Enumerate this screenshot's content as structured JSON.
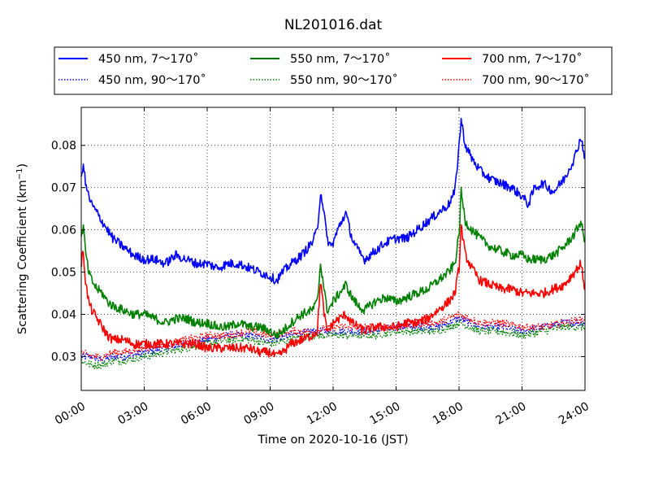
{
  "chart_data": {
    "type": "line",
    "title": "NL201016.dat",
    "xlabel": "Time on 2020-10-16 (JST)",
    "ylabel_main": "Scattering Coefficient (km",
    "ylabel_sup": "−1",
    "ylabel_close": ")",
    "xlim": [
      "00:00",
      "24:00"
    ],
    "ylim": [
      0.022,
      0.089
    ],
    "grid": true,
    "legend_position": "top, above plot",
    "x_ticks": [
      {
        "hour": 0,
        "label": "00:00"
      },
      {
        "hour": 3,
        "label": "03:00"
      },
      {
        "hour": 6,
        "label": "06:00"
      },
      {
        "hour": 9,
        "label": "09:00"
      },
      {
        "hour": 12,
        "label": "12:00"
      },
      {
        "hour": 15,
        "label": "15:00"
      },
      {
        "hour": 18,
        "label": "18:00"
      },
      {
        "hour": 21,
        "label": "21:00"
      },
      {
        "hour": 24,
        "label": "24:00"
      }
    ],
    "y_ticks": [
      {
        "value": 0.03,
        "label": "0.03"
      },
      {
        "value": 0.04,
        "label": "0.04"
      },
      {
        "value": 0.05,
        "label": "0.05"
      },
      {
        "value": 0.06,
        "label": "0.06"
      },
      {
        "value": 0.07,
        "label": "0.07"
      },
      {
        "value": 0.08,
        "label": "0.08"
      }
    ],
    "series": [
      {
        "name": "450 nm, 7～170˚",
        "color": "#0000ff",
        "style": "solid",
        "x": [
          0,
          0.1,
          0.2,
          0.35,
          0.5,
          0.75,
          1,
          1.25,
          1.5,
          2,
          2.5,
          3,
          3.5,
          4,
          4.5,
          5,
          5.5,
          6,
          6.5,
          7,
          7.5,
          8,
          8.5,
          9,
          9.3,
          9.6,
          10,
          10.5,
          11,
          11.25,
          11.4,
          11.55,
          11.7,
          11.9,
          12,
          12.3,
          12.6,
          12.9,
          13.2,
          13.5,
          14,
          14.5,
          15,
          15.5,
          16,
          16.5,
          17,
          17.5,
          17.8,
          18,
          18.1,
          18.3,
          18.6,
          19,
          19.5,
          20,
          20.5,
          21,
          21.3,
          21.6,
          22,
          22.5,
          23,
          23.5,
          23.8,
          24
        ],
        "y": [
          0.072,
          0.076,
          0.071,
          0.068,
          0.066,
          0.064,
          0.062,
          0.06,
          0.058,
          0.056,
          0.054,
          0.053,
          0.053,
          0.052,
          0.054,
          0.053,
          0.052,
          0.052,
          0.051,
          0.052,
          0.052,
          0.051,
          0.05,
          0.049,
          0.048,
          0.05,
          0.052,
          0.054,
          0.057,
          0.06,
          0.069,
          0.065,
          0.058,
          0.056,
          0.057,
          0.061,
          0.064,
          0.058,
          0.055,
          0.053,
          0.055,
          0.057,
          0.058,
          0.058,
          0.06,
          0.062,
          0.064,
          0.066,
          0.069,
          0.08,
          0.086,
          0.08,
          0.077,
          0.074,
          0.072,
          0.071,
          0.07,
          0.068,
          0.066,
          0.07,
          0.071,
          0.069,
          0.072,
          0.077,
          0.082,
          0.077
        ]
      },
      {
        "name": "450 nm, 90～170˚",
        "color": "#0000ff",
        "style": "dotted",
        "x": [
          0,
          0.5,
          1,
          1.5,
          2,
          3,
          4,
          5,
          6,
          7,
          8,
          9,
          10,
          11,
          12,
          13,
          14,
          15,
          16,
          17,
          18,
          18.5,
          19,
          20,
          21,
          22,
          23,
          24
        ],
        "y": [
          0.03,
          0.03,
          0.029,
          0.03,
          0.03,
          0.031,
          0.032,
          0.033,
          0.034,
          0.035,
          0.035,
          0.034,
          0.035,
          0.036,
          0.036,
          0.036,
          0.036,
          0.037,
          0.037,
          0.037,
          0.039,
          0.038,
          0.037,
          0.037,
          0.036,
          0.037,
          0.038,
          0.038
        ]
      },
      {
        "name": "550 nm, 7～170˚",
        "color": "#008000",
        "style": "solid",
        "x": [
          0,
          0.1,
          0.2,
          0.35,
          0.5,
          0.75,
          1,
          1.25,
          1.5,
          2,
          2.5,
          3,
          3.5,
          4,
          4.5,
          5,
          5.5,
          6,
          6.5,
          7,
          7.5,
          8,
          8.5,
          9,
          9.3,
          9.6,
          10,
          10.5,
          11,
          11.25,
          11.4,
          11.55,
          11.7,
          11.9,
          12,
          12.3,
          12.6,
          12.9,
          13.2,
          13.5,
          14,
          14.5,
          15,
          15.5,
          16,
          16.5,
          17,
          17.5,
          17.8,
          18,
          18.1,
          18.3,
          18.6,
          19,
          19.5,
          20,
          20.5,
          21,
          21.3,
          21.6,
          22,
          22.5,
          23,
          23.5,
          23.8,
          24
        ],
        "y": [
          0.058,
          0.061,
          0.055,
          0.05,
          0.048,
          0.046,
          0.045,
          0.043,
          0.042,
          0.041,
          0.04,
          0.04,
          0.039,
          0.038,
          0.039,
          0.039,
          0.038,
          0.038,
          0.037,
          0.037,
          0.038,
          0.037,
          0.037,
          0.036,
          0.035,
          0.036,
          0.038,
          0.04,
          0.041,
          0.043,
          0.052,
          0.047,
          0.041,
          0.042,
          0.043,
          0.045,
          0.047,
          0.044,
          0.042,
          0.041,
          0.043,
          0.044,
          0.043,
          0.044,
          0.045,
          0.046,
          0.048,
          0.05,
          0.052,
          0.059,
          0.069,
          0.062,
          0.06,
          0.058,
          0.056,
          0.055,
          0.054,
          0.054,
          0.053,
          0.053,
          0.053,
          0.054,
          0.056,
          0.059,
          0.062,
          0.057
        ]
      },
      {
        "name": "550 nm, 90～170˚",
        "color": "#008000",
        "style": "dotted",
        "x": [
          0,
          0.5,
          1,
          1.5,
          2,
          3,
          4,
          5,
          6,
          7,
          8,
          9,
          10,
          11,
          12,
          13,
          14,
          15,
          16,
          17,
          18,
          18.5,
          19,
          20,
          21,
          22,
          23,
          24
        ],
        "y": [
          0.029,
          0.028,
          0.028,
          0.029,
          0.029,
          0.03,
          0.031,
          0.032,
          0.033,
          0.034,
          0.034,
          0.033,
          0.034,
          0.035,
          0.035,
          0.035,
          0.035,
          0.036,
          0.036,
          0.036,
          0.038,
          0.037,
          0.036,
          0.036,
          0.035,
          0.036,
          0.037,
          0.037
        ]
      },
      {
        "name": "700 nm, 7～170˚",
        "color": "#ff0000",
        "style": "solid",
        "x": [
          0,
          0.1,
          0.2,
          0.35,
          0.5,
          0.75,
          1,
          1.25,
          1.5,
          2,
          2.5,
          3,
          3.5,
          4,
          4.5,
          5,
          5.5,
          6,
          6.5,
          7,
          7.5,
          8,
          8.5,
          9,
          9.3,
          9.6,
          10,
          10.5,
          11,
          11.25,
          11.4,
          11.55,
          11.7,
          11.9,
          12,
          12.3,
          12.6,
          12.9,
          13.2,
          13.5,
          14,
          14.5,
          15,
          15.5,
          16,
          16.5,
          17,
          17.5,
          17.8,
          18,
          18.1,
          18.3,
          18.6,
          19,
          19.5,
          20,
          20.5,
          21,
          21.3,
          21.6,
          22,
          22.5,
          23,
          23.5,
          23.8,
          24
        ],
        "y": [
          0.052,
          0.055,
          0.048,
          0.043,
          0.041,
          0.039,
          0.037,
          0.035,
          0.034,
          0.034,
          0.033,
          0.033,
          0.033,
          0.033,
          0.033,
          0.033,
          0.033,
          0.032,
          0.032,
          0.032,
          0.032,
          0.032,
          0.031,
          0.031,
          0.03,
          0.031,
          0.033,
          0.034,
          0.035,
          0.036,
          0.048,
          0.041,
          0.036,
          0.037,
          0.038,
          0.039,
          0.04,
          0.038,
          0.037,
          0.036,
          0.037,
          0.037,
          0.037,
          0.038,
          0.038,
          0.039,
          0.041,
          0.043,
          0.045,
          0.051,
          0.061,
          0.054,
          0.051,
          0.048,
          0.047,
          0.046,
          0.046,
          0.045,
          0.045,
          0.045,
          0.045,
          0.046,
          0.047,
          0.05,
          0.052,
          0.046
        ]
      },
      {
        "name": "700 nm, 90～170˚",
        "color": "#ff0000",
        "style": "dotted",
        "x": [
          0,
          0.5,
          1,
          1.5,
          2,
          3,
          4,
          5,
          6,
          7,
          8,
          9,
          10,
          11,
          12,
          13,
          14,
          15,
          16,
          17,
          18,
          18.5,
          19,
          20,
          21,
          22,
          23,
          24
        ],
        "y": [
          0.031,
          0.03,
          0.03,
          0.031,
          0.031,
          0.032,
          0.033,
          0.034,
          0.035,
          0.035,
          0.036,
          0.035,
          0.036,
          0.036,
          0.037,
          0.037,
          0.037,
          0.037,
          0.038,
          0.038,
          0.04,
          0.039,
          0.038,
          0.038,
          0.037,
          0.037,
          0.038,
          0.039
        ]
      }
    ]
  }
}
